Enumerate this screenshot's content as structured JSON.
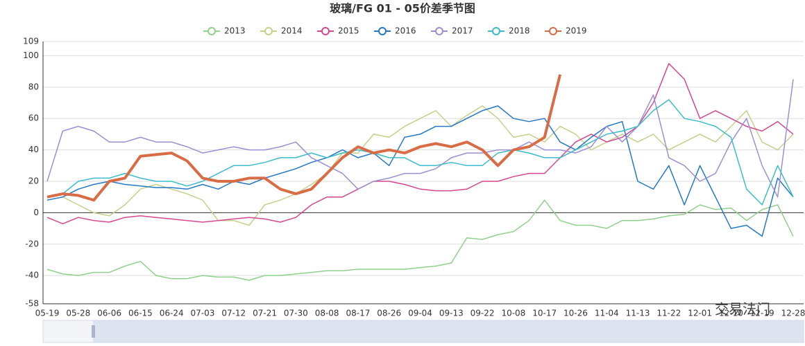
{
  "chart_data": {
    "type": "line",
    "title": "玻璃/FG 01 - 05价差季节图",
    "categories": [
      "05-19",
      null,
      "05-28",
      null,
      "06-06",
      null,
      "06-15",
      null,
      "06-24",
      null,
      "07-03",
      null,
      "07-12",
      null,
      "07-21",
      null,
      "07-30",
      null,
      "08-08",
      null,
      "08-17",
      null,
      "08-26",
      null,
      "09-04",
      null,
      "09-13",
      null,
      "09-22",
      null,
      "10-08",
      null,
      "10-17",
      null,
      "10-26",
      null,
      "11-04",
      null,
      "11-13",
      null,
      "11-22",
      null,
      "12-01",
      null,
      "12-10",
      null,
      "12-19",
      null,
      "12-28"
    ],
    "ylim": [
      -58,
      109
    ],
    "yticks": [
      -58,
      -40,
      -20,
      0,
      20,
      40,
      60,
      80,
      100,
      109
    ],
    "grid": true,
    "legend": "top",
    "logo": "交易法门",
    "series": [
      {
        "name": "2013",
        "color": "#8fd18a",
        "values": [
          -36,
          -39,
          -40,
          -38,
          -38,
          -34,
          -31,
          -40,
          -42,
          -42,
          -40,
          -41,
          -41,
          -43,
          -40,
          -40,
          -39,
          -38,
          -37,
          -37,
          -36,
          -36,
          -36,
          -36,
          -35,
          -34,
          -32,
          -16,
          -17,
          -14,
          -12,
          -5,
          8,
          -5,
          -8,
          -8,
          -10,
          -5,
          -5,
          -4,
          -2,
          -1,
          5,
          2,
          3,
          -5,
          2,
          5,
          -15
        ]
      },
      {
        "name": "2014",
        "color": "#c5d08a",
        "values": [
          8,
          10,
          5,
          0,
          -2,
          5,
          15,
          18,
          15,
          12,
          8,
          -5,
          -5,
          -8,
          5,
          8,
          12,
          18,
          25,
          38,
          38,
          50,
          48,
          55,
          60,
          65,
          55,
          62,
          68,
          60,
          48,
          50,
          45,
          55,
          50,
          40,
          45,
          50,
          45,
          50,
          40,
          45,
          50,
          45,
          55,
          65,
          45,
          40,
          50
        ]
      },
      {
        "name": "2015",
        "color": "#d6478f",
        "values": [
          -3,
          -7,
          -3,
          -5,
          -6,
          -3,
          -2,
          -3,
          -4,
          -5,
          -6,
          -5,
          -4,
          -3,
          -4,
          -6,
          -3,
          5,
          10,
          10,
          15,
          20,
          20,
          18,
          15,
          14,
          14,
          15,
          20,
          20,
          23,
          25,
          25,
          35,
          45,
          50,
          45,
          48,
          55,
          70,
          95,
          85,
          60,
          65,
          60,
          55,
          52,
          58,
          50
        ]
      },
      {
        "name": "2016",
        "color": "#2478c9",
        "values": [
          8,
          10,
          15,
          18,
          20,
          18,
          17,
          16,
          16,
          15,
          18,
          15,
          20,
          18,
          22,
          25,
          28,
          32,
          35,
          40,
          35,
          38,
          30,
          48,
          50,
          55,
          55,
          60,
          65,
          68,
          60,
          58,
          60,
          45,
          40,
          48,
          55,
          58,
          20,
          15,
          30,
          5,
          30,
          10,
          -10,
          -8,
          -15,
          22,
          10
        ]
      },
      {
        "name": "2017",
        "color": "#9b8fd4",
        "values": [
          20,
          52,
          55,
          52,
          45,
          45,
          48,
          45,
          45,
          42,
          38,
          40,
          42,
          40,
          40,
          42,
          45,
          35,
          30,
          25,
          15,
          20,
          22,
          25,
          25,
          28,
          35,
          38,
          38,
          40,
          40,
          45,
          40,
          40,
          38,
          42,
          55,
          45,
          55,
          75,
          35,
          30,
          20,
          25,
          45,
          60,
          30,
          10,
          85
        ]
      },
      {
        "name": "2018",
        "color": "#3bbccb",
        "values": [
          10,
          12,
          20,
          22,
          22,
          25,
          22,
          20,
          20,
          17,
          20,
          25,
          30,
          30,
          32,
          35,
          35,
          38,
          35,
          38,
          40,
          38,
          35,
          35,
          30,
          30,
          32,
          30,
          30,
          38,
          40,
          38,
          35,
          35,
          40,
          45,
          50,
          52,
          55,
          65,
          72,
          60,
          58,
          55,
          48,
          15,
          5,
          30,
          10
        ]
      },
      {
        "name": "2019",
        "color": "#d96b45",
        "values": [
          10,
          12,
          11,
          8,
          20,
          22,
          36,
          37,
          38,
          33,
          22,
          20,
          20,
          22,
          22,
          15,
          12,
          15,
          25,
          35,
          42,
          38,
          40,
          38,
          42,
          44,
          42,
          45,
          40,
          30,
          40,
          42,
          48,
          88,
          null,
          null,
          null,
          null,
          null,
          null,
          null,
          null,
          null,
          null,
          null,
          null,
          null,
          null,
          null
        ]
      }
    ]
  }
}
